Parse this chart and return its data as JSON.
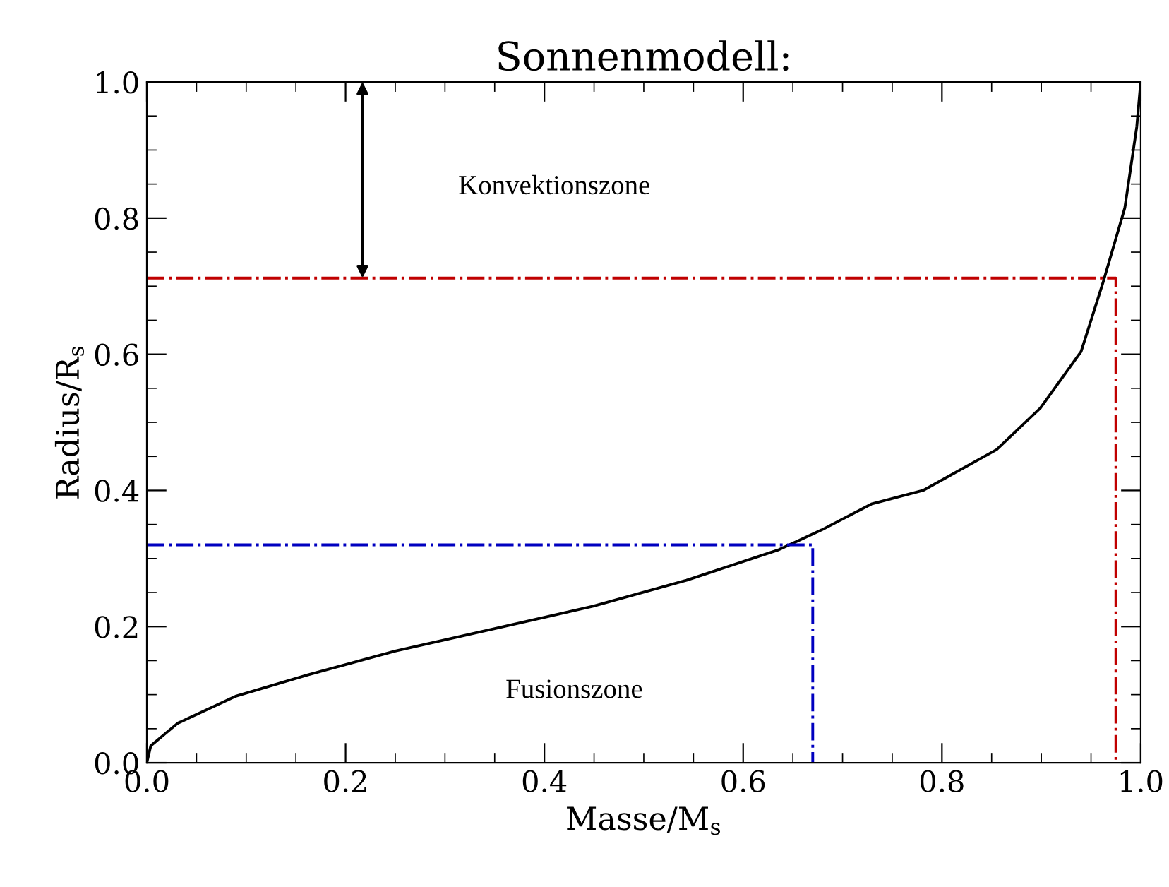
{
  "chart_data": {
    "type": "line",
    "title": "Sonnenmodell:",
    "xlabel": "Masse/M$_{s}$",
    "ylabel": "Radius/R$_{s}$",
    "xlim": [
      0,
      1
    ],
    "ylim": [
      0,
      1
    ],
    "xticks": [
      {
        "value": 0,
        "label": "0.0"
      },
      0.2,
      0.4,
      0.6,
      0.8,
      {
        "value": 1,
        "label": "1.0"
      }
    ],
    "yticks": [
      {
        "value": 0,
        "label": "0.0"
      },
      0.2,
      0.4,
      0.6,
      0.8,
      {
        "value": 1,
        "label": "1.0"
      }
    ],
    "grid": false,
    "legend": false,
    "series": [
      {
        "color": "#000000",
        "line_style": "solid",
        "x": [
          0,
          0.004,
          0.031,
          0.09,
          0.162,
          0.25,
          0.35,
          0.449,
          0.543,
          0.636,
          0.679,
          0.729,
          0.781,
          0.855,
          0.899,
          0.94,
          0.962,
          0.984,
          0.996,
          1.0
        ],
        "values": [
          0,
          0.025,
          0.058,
          0.098,
          0.129,
          0.164,
          0.197,
          0.23,
          0.268,
          0.313,
          0.342,
          0.38,
          0.4,
          0.46,
          0.521,
          0.604,
          0.705,
          0.815,
          0.934,
          1.0
        ]
      },
      {
        "color": "#c00000",
        "line_style": "dashdot",
        "x": [
          0,
          0.975,
          0.975
        ],
        "values": [
          0.712,
          0.712,
          0
        ]
      },
      {
        "color": "#0000c0",
        "line_style": "dashdot",
        "x": [
          0,
          0.67,
          0.67
        ],
        "values": [
          0.32,
          0.32,
          0
        ]
      }
    ],
    "annotations": [
      "Konvektionszone",
      "Fusionszone"
    ]
  }
}
